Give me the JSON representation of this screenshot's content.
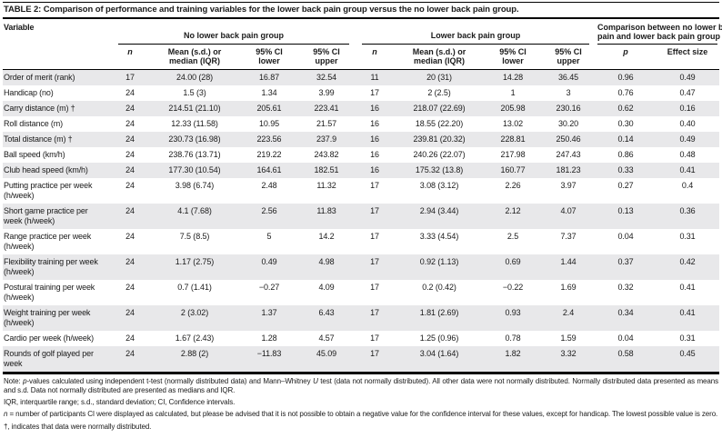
{
  "page": {
    "title": "TABLE 2: Comparison of performance and training variables for the lower back pain group versus the no lower back pain group."
  },
  "colors": {
    "stripe": "#e8e8ea",
    "rule": "#000000",
    "text": "#1a1a1a"
  },
  "table": {
    "variable_header": "Variable",
    "groups": [
      {
        "name": "no-lower-back-pain-group",
        "lines": [
          "No lower back pain group"
        ]
      },
      {
        "name": "lower-back-pain-group",
        "lines": [
          "Lower back pain group"
        ]
      },
      {
        "name": "comparison-group",
        "lines": [
          "Comparison between no lower back",
          "pain and lower back pain group"
        ]
      }
    ],
    "subheaders": [
      {
        "key": "n-no-lbp",
        "lines": [
          "n"
        ],
        "italic": true
      },
      {
        "key": "mean-no-lbp",
        "lines": [
          "Mean (s.d.) or",
          "median (IQR)"
        ],
        "italic": false
      },
      {
        "key": "ci-lower-no-lbp",
        "lines": [
          "95% CI",
          "lower"
        ],
        "italic": false
      },
      {
        "key": "ci-upper-no-lbp",
        "lines": [
          "95% CI",
          "upper"
        ],
        "italic": false
      },
      {
        "key": "n-lbp",
        "lines": [
          "n"
        ],
        "italic": true
      },
      {
        "key": "mean-lbp",
        "lines": [
          "Mean (s.d.) or",
          "median (IQR)"
        ],
        "italic": false
      },
      {
        "key": "ci-lower-lbp",
        "lines": [
          "95% CI",
          "lower"
        ],
        "italic": false
      },
      {
        "key": "ci-upper-lbp",
        "lines": [
          "95% CI",
          "upper"
        ],
        "italic": false
      },
      {
        "key": "p-value",
        "lines": [
          "p"
        ],
        "italic": true
      },
      {
        "key": "effect-size",
        "lines": [
          "Effect size"
        ],
        "italic": false
      }
    ],
    "rows": [
      {
        "variable": "Order of merit (rank)",
        "cells": [
          "17",
          "24.00 (28)",
          "16.87",
          "32.54",
          "11",
          "20 (31)",
          "14.28",
          "36.45",
          "0.96",
          "0.49"
        ]
      },
      {
        "variable": "Handicap (no)",
        "cells": [
          "24",
          "1.5 (3)",
          "1.34",
          "3.99",
          "17",
          "2 (2.5)",
          "1",
          "3",
          "0.76",
          "0.47"
        ]
      },
      {
        "variable": "Carry distance (m) †",
        "cells": [
          "24",
          "214.51 (21.10)",
          "205.61",
          "223.41",
          "16",
          "218.07 (22.69)",
          "205.98",
          "230.16",
          "0.62",
          "0.16"
        ]
      },
      {
        "variable": "Roll distance (m)",
        "cells": [
          "24",
          "12.33 (11.58)",
          "10.95",
          "21.57",
          "16",
          "18.55 (22.20)",
          "13.02",
          "30.20",
          "0.30",
          "0.40"
        ]
      },
      {
        "variable": "Total distance (m) †",
        "cells": [
          "24",
          "230.73 (16.98)",
          "223.56",
          "237.9",
          "16",
          "239.81 (20.32)",
          "228.81",
          "250.46",
          "0.14",
          "0.49"
        ]
      },
      {
        "variable": "Ball speed (km/h)",
        "cells": [
          "24",
          "238.76 (13.71)",
          "219.22",
          "243.82",
          "16",
          "240.26 (22.07)",
          "217.98",
          "247.43",
          "0.86",
          "0.48"
        ]
      },
      {
        "variable": "Club head speed (km/h)",
        "cells": [
          "24",
          "177.30 (10.54)",
          "164.61",
          "182.51",
          "16",
          "175.32 (13.8)",
          "160.77",
          "181.23",
          "0.33",
          "0.41"
        ]
      },
      {
        "variable": "Putting practice per week (h/week)",
        "cells": [
          "24",
          "3.98 (6.74)",
          "2.48",
          "11.32",
          "17",
          "3.08 (3.12)",
          "2.26",
          "3.97",
          "0.27",
          "0.4"
        ]
      },
      {
        "variable": "Short game practice per week (h/week)",
        "cells": [
          "24",
          "4.1 (7.68)",
          "2.56",
          "11.83",
          "17",
          "2.94 (3.44)",
          "2.12",
          "4.07",
          "0.13",
          "0.36"
        ]
      },
      {
        "variable": "Range practice per week (h/week)",
        "cells": [
          "24",
          "7.5 (8.5)",
          "5",
          "14.2",
          "17",
          "3.33 (4.54)",
          "2.5",
          "7.37",
          "0.04",
          "0.31"
        ]
      },
      {
        "variable": "Flexibility training per week (h/week)",
        "cells": [
          "24",
          "1.17 (2.75)",
          "0.49",
          "4.98",
          "17",
          "0.92 (1.13)",
          "0.69",
          "1.44",
          "0.37",
          "0.42"
        ]
      },
      {
        "variable": "Postural training per week (h/week)",
        "cells": [
          "24",
          "0.7 (1.41)",
          "−0.27",
          "4.09",
          "17",
          "0.2 (0.42)",
          "−0.22",
          "1.69",
          "0.32",
          "0.41"
        ]
      },
      {
        "variable": "Weight training per week (h/week)",
        "cells": [
          "24",
          "2 (3.02)",
          "1.37",
          "6.43",
          "17",
          "1.81 (2.69)",
          "0.93",
          "2.4",
          "0.34",
          "0.41"
        ]
      },
      {
        "variable": "Cardio per week (h/week)",
        "cells": [
          "24",
          "1.67 (2.43)",
          "1.28",
          "4.57",
          "17",
          "1.25 (0.96)",
          "0.78",
          "1.59",
          "0.04",
          "0.31"
        ]
      },
      {
        "variable": "Rounds of golf played per week",
        "cells": [
          "24",
          "2.88 (2)",
          "−11.83",
          "45.09",
          "17",
          "3.04 (1.64)",
          "1.82",
          "3.32",
          "0.58",
          "0.45"
        ]
      }
    ]
  },
  "notes": [
    {
      "segments": [
        {
          "t": "Note: ",
          "s": "n"
        },
        {
          "t": "p",
          "s": "i"
        },
        {
          "t": "-values calculated using independent t-test (normally distributed data) and Mann–Whitney ",
          "s": "n"
        },
        {
          "t": "U",
          "s": "i"
        },
        {
          "t": " test (data not normally distributed). All other data were not normally distributed. Normally distributed data presented as means and s.d. Data not normally distributed are presented as medians and IQR.",
          "s": "n"
        }
      ]
    },
    {
      "segments": [
        {
          "t": "IQR, interquartile range; s.d., standard deviation; CI, Confidence intervals.",
          "s": "n"
        }
      ]
    },
    {
      "segments": [
        {
          "t": "n",
          "s": "i"
        },
        {
          "t": " = number of participants CI were displayed as calculated, but please be advised that it is not possible to obtain a negative value for the confidence interval for these values, except for handicap. The lowest possible value is zero.",
          "s": "n"
        }
      ]
    },
    {
      "segments": [
        {
          "t": "†, indicates that data were normally distributed.",
          "s": "n"
        }
      ]
    }
  ]
}
